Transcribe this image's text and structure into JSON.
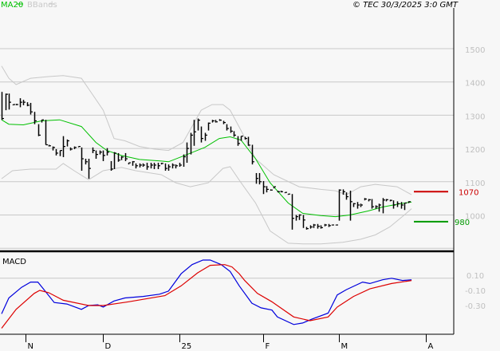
{
  "header": {
    "legend_ma": "MA20",
    "legend_bbands": "BBands",
    "copyright": "© TEC 30/3/2025 3:0 GMT"
  },
  "colors": {
    "price_bars": "#000000",
    "ma20": "#00c000",
    "bbands": "#c8c8c8",
    "macd": "#0000dd",
    "signal": "#dd0000",
    "resistance": "#cc0000",
    "support": "#009900",
    "axis_labels": "#c0c0c0"
  },
  "chart_data": [
    {
      "type": "ohlc",
      "bar_fields": [
        "high",
        "low",
        "close"
      ],
      "y_ticks": [
        "1000",
        "1100",
        "1200",
        "1300",
        "1400",
        "1500"
      ],
      "y_tick_values": [
        1000,
        1100,
        1200,
        1300,
        1400,
        1500
      ],
      "ylim": [
        880,
        1610
      ],
      "grid": true,
      "x_ticks": [
        "N",
        "D",
        "25",
        "F",
        "M",
        "A"
      ],
      "x_tick_bar_index": [
        6.5,
        28,
        49,
        72,
        93,
        117
      ],
      "bars": [
        [
          1370,
          1286,
          1290
        ],
        [
          1365,
          1315,
          1363
        ],
        [
          1365,
          1317,
          1339
        ],
        [
          1332,
          1330,
          1332
        ],
        [
          1334,
          1330,
          1332
        ],
        [
          1351,
          1324,
          1339
        ],
        [
          1346,
          1330,
          1339
        ],
        [
          1339,
          1327,
          1330
        ],
        [
          1337,
          1302,
          1310
        ],
        [
          1310,
          1273,
          1283
        ],
        [
          1273,
          1237,
          1240
        ],
        [
          1286,
          1278,
          1286
        ],
        [
          1286,
          1211,
          1211
        ],
        [
          1211,
          1206,
          1208
        ],
        [
          1206,
          1194,
          1203
        ],
        [
          1198,
          1179,
          1186
        ],
        [
          1194,
          1177,
          1194
        ],
        [
          1237,
          1174,
          1206
        ],
        [
          1227,
          1206,
          1223
        ],
        [
          1203,
          1194,
          1198
        ],
        [
          1206,
          1198,
          1203
        ],
        [
          1206,
          1206,
          1206
        ],
        [
          1203,
          1133,
          1169
        ],
        [
          1169,
          1152,
          1160
        ],
        [
          1169,
          1109,
          1140
        ],
        [
          1203,
          1186,
          1194
        ],
        [
          1194,
          1169,
          1182
        ],
        [
          1194,
          1182,
          1189
        ],
        [
          1194,
          1162,
          1179
        ],
        [
          1201,
          1179,
          1189
        ],
        [
          1162,
          1133,
          1138
        ],
        [
          1189,
          1138,
          1186
        ],
        [
          1186,
          1160,
          1165
        ],
        [
          1177,
          1165,
          1174
        ],
        [
          1186,
          1162,
          1169
        ],
        [
          1157,
          1152,
          1157
        ],
        [
          1162,
          1148,
          1160
        ],
        [
          1155,
          1140,
          1148
        ],
        [
          1155,
          1143,
          1150
        ],
        [
          1155,
          1145,
          1150
        ],
        [
          1157,
          1136,
          1145
        ],
        [
          1157,
          1140,
          1150
        ],
        [
          1157,
          1138,
          1150
        ],
        [
          1157,
          1138,
          1148
        ],
        [
          1157,
          1152,
          1155
        ],
        [
          1155,
          1133,
          1140
        ],
        [
          1152,
          1133,
          1145
        ],
        [
          1155,
          1140,
          1150
        ],
        [
          1152,
          1140,
          1148
        ],
        [
          1157,
          1145,
          1150
        ],
        [
          1182,
          1145,
          1175
        ],
        [
          1218,
          1157,
          1200
        ],
        [
          1247,
          1182,
          1240
        ],
        [
          1286,
          1208,
          1250
        ],
        [
          1290,
          1254,
          1285
        ],
        [
          1266,
          1218,
          1230
        ],
        [
          1247,
          1223,
          1240
        ],
        [
          1278,
          1254,
          1276
        ],
        [
          1286,
          1278,
          1283
        ],
        [
          1286,
          1278,
          1280
        ],
        [
          1288,
          1283,
          1285
        ],
        [
          1283,
          1273,
          1278
        ],
        [
          1273,
          1254,
          1260
        ],
        [
          1266,
          1247,
          1252
        ],
        [
          1252,
          1235,
          1240
        ],
        [
          1237,
          1208,
          1215
        ],
        [
          1237,
          1223,
          1237
        ],
        [
          1235,
          1227,
          1230
        ],
        [
          1235,
          1208,
          1210
        ],
        [
          1211,
          1152,
          1160
        ],
        [
          1126,
          1094,
          1110
        ],
        [
          1126,
          1092,
          1100
        ],
        [
          1102,
          1063,
          1085
        ],
        [
          1087,
          1068,
          1077
        ],
        [
          1077,
          1073,
          1075
        ],
        [
          1085,
          1080,
          1085
        ],
        [
          1073,
          1068,
          1070
        ],
        [
          1073,
          1068,
          1070
        ],
        [
          1068,
          1068,
          1068
        ],
        [
          1063,
          1063,
          1063
        ],
        [
          1063,
          956,
          990
        ],
        [
          1000,
          983,
          995
        ],
        [
          1002,
          985,
          1000
        ],
        [
          1000,
          961,
          985
        ],
        [
          964,
          956,
          959
        ],
        [
          969,
          959,
          964
        ],
        [
          973,
          961,
          970
        ],
        [
          973,
          959,
          966
        ],
        [
          969,
          959,
          962
        ],
        [
          973,
          966,
          970
        ],
        [
          973,
          964,
          968
        ],
        [
          971,
          969,
          970
        ],
        [
          971,
          969,
          970
        ],
        [
          1077,
          983,
          1075
        ],
        [
          1077,
          1061,
          1070
        ],
        [
          1068,
          1046,
          1055
        ],
        [
          1073,
          983,
          1040
        ],
        [
          1036,
          1024,
          1034
        ],
        [
          1039,
          1019,
          1030
        ],
        [
          1034,
          1024,
          1030
        ],
        [
          1051,
          1044,
          1048
        ],
        [
          1048,
          1041,
          1046
        ],
        [
          1048,
          1019,
          1025
        ],
        [
          1029,
          1019,
          1025
        ],
        [
          1034,
          1010,
          1030
        ],
        [
          1051,
          1005,
          1045
        ],
        [
          1048,
          1041,
          1046
        ],
        [
          1046,
          1041,
          1044
        ],
        [
          1044,
          1019,
          1030
        ],
        [
          1041,
          1024,
          1034
        ],
        [
          1039,
          1019,
          1030
        ],
        [
          1036,
          1015,
          1036
        ],
        [
          1041,
          1036,
          1040
        ]
      ],
      "ma20": [
        [
          0,
          1286
        ],
        [
          2,
          1273
        ],
        [
          6,
          1271
        ],
        [
          11,
          1283
        ],
        [
          16,
          1286
        ],
        [
          22,
          1266
        ],
        [
          26,
          1218
        ],
        [
          29,
          1194
        ],
        [
          33,
          1179
        ],
        [
          38,
          1167
        ],
        [
          44,
          1162
        ],
        [
          46,
          1160
        ],
        [
          50,
          1177
        ],
        [
          56,
          1203
        ],
        [
          60,
          1230
        ],
        [
          63,
          1235
        ],
        [
          66,
          1225
        ],
        [
          70,
          1169
        ],
        [
          74,
          1097
        ],
        [
          79,
          1036
        ],
        [
          83,
          1005
        ],
        [
          88,
          998
        ],
        [
          92,
          995
        ],
        [
          96,
          1000
        ],
        [
          101,
          1012
        ],
        [
          105,
          1024
        ],
        [
          110,
          1034
        ],
        [
          113,
          1039
        ]
      ],
      "bband_upper": [
        [
          0,
          1448
        ],
        [
          2,
          1411
        ],
        [
          4,
          1392
        ],
        [
          8,
          1411
        ],
        [
          13,
          1416
        ],
        [
          17,
          1419
        ],
        [
          22,
          1411
        ],
        [
          25,
          1363
        ],
        [
          28,
          1315
        ],
        [
          31,
          1230
        ],
        [
          34,
          1223
        ],
        [
          38,
          1206
        ],
        [
          42,
          1198
        ],
        [
          46,
          1194
        ],
        [
          50,
          1218
        ],
        [
          55,
          1315
        ],
        [
          58,
          1332
        ],
        [
          61,
          1332
        ],
        [
          63,
          1315
        ],
        [
          66,
          1254
        ],
        [
          70,
          1169
        ],
        [
          75,
          1121
        ],
        [
          82,
          1085
        ],
        [
          88,
          1077
        ],
        [
          92,
          1073
        ],
        [
          95,
          1061
        ],
        [
          99,
          1085
        ],
        [
          103,
          1092
        ],
        [
          109,
          1085
        ],
        [
          113,
          1061
        ]
      ],
      "bband_lower": [
        [
          0,
          1109
        ],
        [
          3,
          1133
        ],
        [
          8,
          1138
        ],
        [
          15,
          1138
        ],
        [
          17,
          1155
        ],
        [
          20,
          1133
        ],
        [
          24,
          1106
        ],
        [
          28,
          1133
        ],
        [
          33,
          1143
        ],
        [
          37,
          1133
        ],
        [
          44,
          1121
        ],
        [
          48,
          1097
        ],
        [
          52,
          1085
        ],
        [
          57,
          1097
        ],
        [
          61,
          1140
        ],
        [
          63,
          1145
        ],
        [
          66,
          1097
        ],
        [
          70,
          1036
        ],
        [
          74,
          952
        ],
        [
          79,
          915
        ],
        [
          83,
          913
        ],
        [
          88,
          913
        ],
        [
          94,
          918
        ],
        [
          99,
          927
        ],
        [
          103,
          940
        ],
        [
          107,
          964
        ],
        [
          111,
          1000
        ],
        [
          113,
          1019
        ]
      ],
      "levels": [
        {
          "label": "1070",
          "value": 1070,
          "kind": "resistance"
        },
        {
          "label": "980",
          "value": 980,
          "kind": "support"
        }
      ]
    },
    {
      "type": "line",
      "title": "MACD",
      "y_ticks": [
        "0.10",
        "-0.10",
        "-0.30"
      ],
      "y_tick_values": [
        0.1,
        -0.1,
        -0.3
      ],
      "ylim": [
        -0.78,
        0.42
      ],
      "gridline_value": 0.06,
      "series": [
        {
          "key": "macd",
          "points": [
            [
              0,
              -0.41
            ],
            [
              2,
              -0.2
            ],
            [
              5.5,
              -0.06
            ],
            [
              8,
              0.01
            ],
            [
              10,
              0.01
            ],
            [
              12,
              -0.11
            ],
            [
              14.5,
              -0.26
            ],
            [
              18,
              -0.28
            ],
            [
              22,
              -0.35
            ],
            [
              24,
              -0.3
            ],
            [
              26.5,
              -0.29
            ],
            [
              28,
              -0.32
            ],
            [
              31,
              -0.24
            ],
            [
              34,
              -0.2
            ],
            [
              39,
              -0.18
            ],
            [
              43.5,
              -0.15
            ],
            [
              46,
              -0.11
            ],
            [
              49.5,
              0.12
            ],
            [
              52.5,
              0.24
            ],
            [
              55.5,
              0.3
            ],
            [
              57.5,
              0.3
            ],
            [
              60.5,
              0.24
            ],
            [
              63,
              0.15
            ],
            [
              65.5,
              -0.04
            ],
            [
              69,
              -0.27
            ],
            [
              71.5,
              -0.33
            ],
            [
              74.5,
              -0.36
            ],
            [
              76,
              -0.45
            ],
            [
              80.5,
              -0.55
            ],
            [
              83,
              -0.53
            ],
            [
              85.5,
              -0.48
            ],
            [
              90,
              -0.4
            ],
            [
              92.5,
              -0.16
            ],
            [
              95,
              -0.09
            ],
            [
              99.5,
              0.01
            ],
            [
              101.5,
              -0.01
            ],
            [
              105,
              0.04
            ],
            [
              107.5,
              0.06
            ],
            [
              110.5,
              0.03
            ],
            [
              113,
              0.04
            ]
          ]
        },
        {
          "key": "signal",
          "points": [
            [
              0,
              -0.6
            ],
            [
              4,
              -0.35
            ],
            [
              9,
              -0.14
            ],
            [
              10.5,
              -0.1
            ],
            [
              13,
              -0.13
            ],
            [
              17,
              -0.23
            ],
            [
              24,
              -0.3
            ],
            [
              28,
              -0.3
            ],
            [
              35,
              -0.25
            ],
            [
              45,
              -0.17
            ],
            [
              49.5,
              -0.04
            ],
            [
              54,
              0.13
            ],
            [
              57.5,
              0.23
            ],
            [
              61.5,
              0.24
            ],
            [
              63.5,
              0.21
            ],
            [
              65.5,
              0.12
            ],
            [
              67,
              0.03
            ],
            [
              70.5,
              -0.14
            ],
            [
              74.5,
              -0.25
            ],
            [
              80.5,
              -0.45
            ],
            [
              85,
              -0.5
            ],
            [
              90,
              -0.45
            ],
            [
              92.5,
              -0.32
            ],
            [
              97,
              -0.18
            ],
            [
              101.5,
              -0.08
            ],
            [
              107.5,
              -0.01
            ],
            [
              113,
              0.03
            ]
          ]
        }
      ]
    }
  ]
}
